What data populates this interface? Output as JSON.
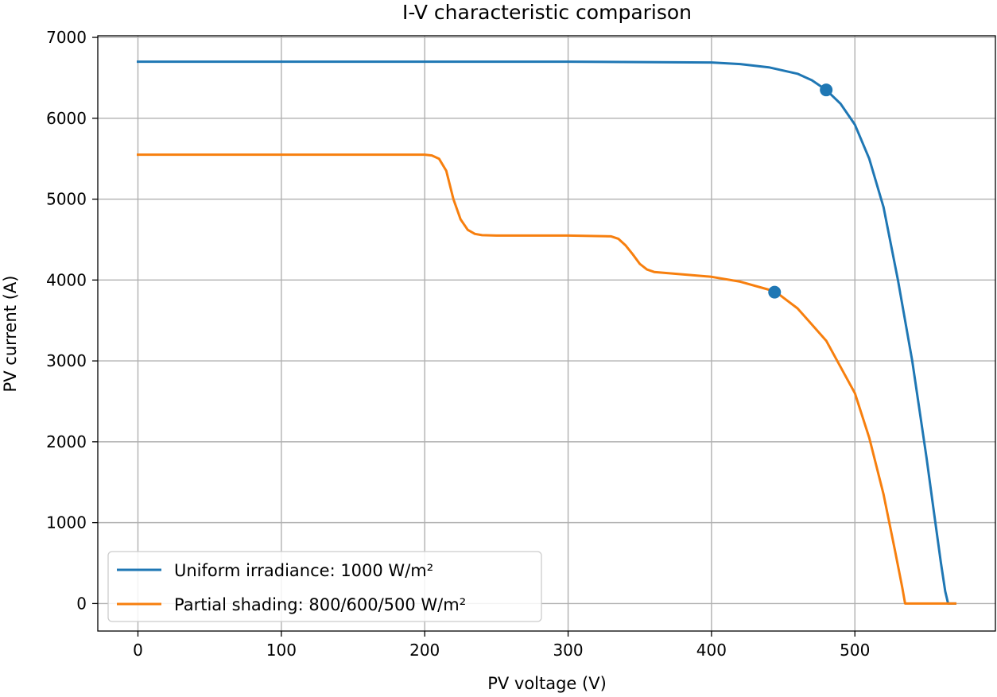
{
  "chart_data": {
    "type": "line",
    "title": "I-V characteristic comparison",
    "xlabel": "PV voltage (V)",
    "ylabel": "PV current (A)",
    "xlim": [
      -28,
      598
    ],
    "ylim": [
      -340,
      7020
    ],
    "x_ticks": [
      0,
      100,
      200,
      300,
      400,
      500
    ],
    "y_ticks": [
      0,
      1000,
      2000,
      3000,
      4000,
      5000,
      6000,
      7000
    ],
    "grid": true,
    "legend_position": "lower-left",
    "series": [
      {
        "name": "Uniform irradiance: 1000 W/m²",
        "color": "#1f77b4",
        "x": [
          0,
          100,
          200,
          300,
          350,
          400,
          420,
          440,
          460,
          470,
          480,
          490,
          500,
          510,
          520,
          530,
          540,
          550,
          555,
          560,
          563,
          565,
          570
        ],
        "y": [
          6700,
          6700,
          6700,
          6700,
          6695,
          6690,
          6670,
          6630,
          6550,
          6470,
          6350,
          6180,
          5920,
          5500,
          4900,
          4000,
          3000,
          1800,
          1150,
          500,
          150,
          0,
          0
        ]
      },
      {
        "name": "Partial shading: 800/600/500 W/m²",
        "color": "#f77f0e",
        "x": [
          0,
          100,
          200,
          205,
          210,
          215,
          220,
          225,
          230,
          235,
          240,
          250,
          300,
          330,
          335,
          340,
          345,
          350,
          355,
          360,
          370,
          380,
          400,
          420,
          440,
          445,
          460,
          480,
          500,
          510,
          520,
          528,
          533,
          535,
          540,
          570
        ],
        "y": [
          5550,
          5550,
          5550,
          5540,
          5500,
          5350,
          5000,
          4750,
          4620,
          4570,
          4555,
          4550,
          4550,
          4540,
          4510,
          4430,
          4320,
          4200,
          4130,
          4100,
          4085,
          4070,
          4040,
          3980,
          3880,
          3850,
          3650,
          3250,
          2600,
          2050,
          1350,
          650,
          200,
          0,
          0,
          0
        ]
      }
    ],
    "markers": [
      {
        "series": "Uniform irradiance: 1000 W/m²",
        "x": 480,
        "y": 6350,
        "color": "#1f77b4"
      },
      {
        "series": "Partial shading: 800/600/500 W/m²",
        "x": 444,
        "y": 3850,
        "color": "#1f77b4"
      }
    ]
  }
}
